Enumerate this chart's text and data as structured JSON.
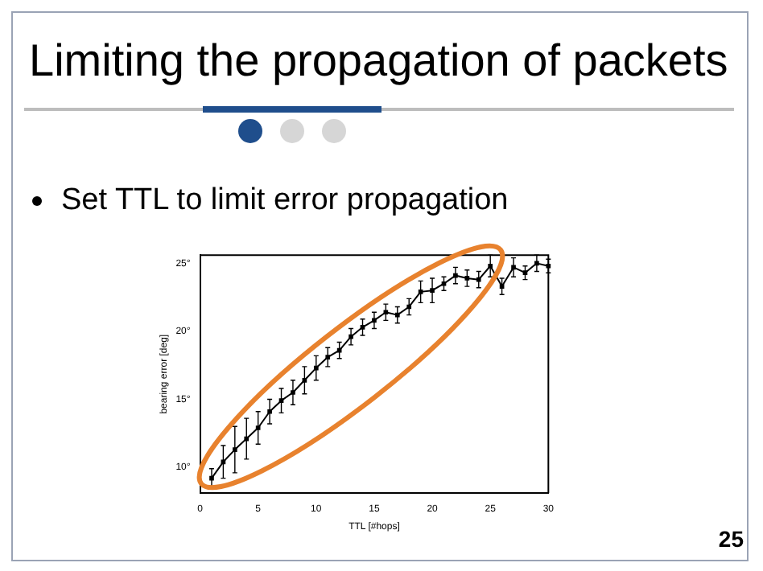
{
  "chart_data": {
    "type": "line",
    "title": "Limiting the propagation of packets",
    "subtitle": "Set TTL to limit error propagation",
    "xlabel": "TTL [#hops]",
    "ylabel": "bearing error [deg]",
    "x": [
      1,
      2,
      3,
      4,
      5,
      6,
      7,
      8,
      9,
      10,
      11,
      12,
      13,
      14,
      15,
      16,
      17,
      18,
      19,
      20,
      21,
      22,
      23,
      24,
      25,
      26,
      27,
      28,
      29,
      30
    ],
    "series": [
      {
        "color": "#000000",
        "values": [
          9.2,
          10.4,
          11.3,
          12.1,
          12.9,
          14.1,
          14.9,
          15.5,
          16.4,
          17.3,
          18.1,
          18.6,
          19.6,
          20.3,
          20.8,
          21.4,
          21.2,
          21.8,
          22.9,
          23.0,
          23.5,
          24.1,
          23.9,
          23.8,
          24.8,
          23.3,
          24.7,
          24.3,
          25.0,
          24.8
        ],
        "errors": [
          0.7,
          1.2,
          1.7,
          1.5,
          1.2,
          0.9,
          0.9,
          0.9,
          1.0,
          0.9,
          0.7,
          0.6,
          0.6,
          0.6,
          0.6,
          0.6,
          0.6,
          0.6,
          0.8,
          0.9,
          0.5,
          0.6,
          0.6,
          0.6,
          0.8,
          0.6,
          0.7,
          0.5,
          0.6,
          0.5
        ]
      }
    ],
    "xlim": [
      0,
      30
    ],
    "xticks": [
      0,
      5,
      10,
      15,
      20,
      25,
      30
    ],
    "ylim": [
      8.1,
      25.6
    ],
    "yticks": [
      {
        "value": 10,
        "label": "10°"
      },
      {
        "value": 15,
        "label": "15°"
      },
      {
        "value": 20,
        "label": "20°"
      },
      {
        "value": 25,
        "label": "25°"
      }
    ],
    "marker": "square",
    "line_style": "solid",
    "grid": false,
    "legend": false,
    "annotations": [
      "25"
    ]
  }
}
